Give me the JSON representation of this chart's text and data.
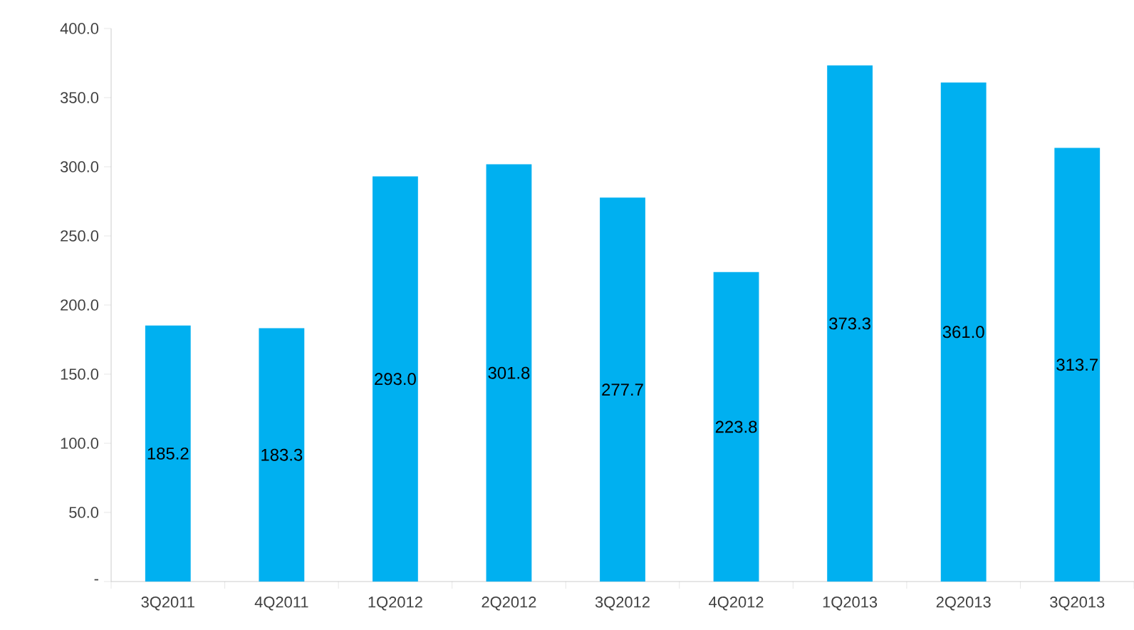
{
  "chart_data": {
    "type": "bar",
    "categories": [
      "3Q2011",
      "4Q2011",
      "1Q2012",
      "2Q2012",
      "3Q2012",
      "4Q2012",
      "1Q2013",
      "2Q2013",
      "3Q2013"
    ],
    "values": [
      185.2,
      183.3,
      293.0,
      301.8,
      277.7,
      223.8,
      373.3,
      361.0,
      313.7
    ],
    "value_labels": [
      "185.2",
      "183.3",
      "293.0",
      "301.8",
      "277.7",
      "223.8",
      "373.3",
      "361.0",
      "313.7"
    ],
    "color": "#00b0f0",
    "ylim": [
      0,
      400
    ],
    "yticks": [
      {
        "value": 0,
        "label": "-"
      },
      {
        "value": 50,
        "label": "50.0"
      },
      {
        "value": 100,
        "label": "100.0"
      },
      {
        "value": 150,
        "label": "150.0"
      },
      {
        "value": 200,
        "label": "200.0"
      },
      {
        "value": 250,
        "label": "250.0"
      },
      {
        "value": 300,
        "label": "300.0"
      },
      {
        "value": 350,
        "label": "350.0"
      },
      {
        "value": 400,
        "label": "400.0"
      }
    ],
    "grid": false
  }
}
